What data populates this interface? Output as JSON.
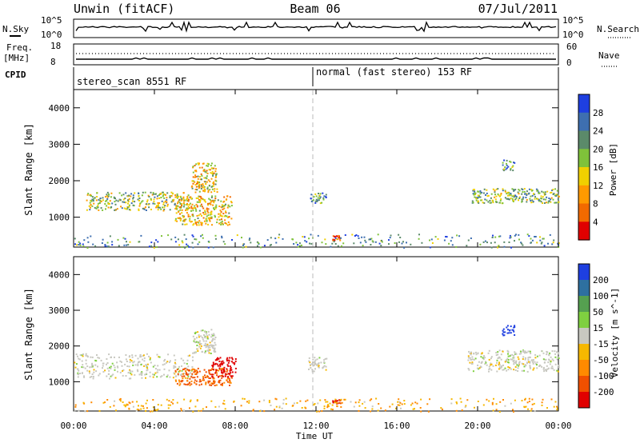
{
  "header": {
    "station": "Unwin (fitACF)",
    "beam": "Beam 06",
    "date": "07/Jul/2011"
  },
  "top_panels": {
    "nsky_label": "N.Sky",
    "nsearch_label": "N.Search",
    "nsky_ticks": [
      "10^5",
      "10^0"
    ],
    "nsearch_ticks": [
      "10^5",
      "10^0"
    ],
    "freq_label_1": "Freq.",
    "freq_label_2": "[MHz]",
    "freq_ticks": [
      "18",
      "8"
    ],
    "nave_label": "Nave",
    "nave_ticks": [
      "60",
      "0"
    ],
    "cpid_label": "CPID",
    "cpid_mode_1": "stereo_scan 8551 RF",
    "cpid_mode_2": "normal (fast stereo) 153 RF"
  },
  "chart_data": [
    {
      "type": "heatmap",
      "title": "",
      "xlabel": "",
      "ylabel": "Slant Range [km]",
      "x_range_hours": [
        0,
        24
      ],
      "ylim": [
        180,
        4500
      ],
      "y_ticks": [
        1000,
        2000,
        3000,
        4000
      ],
      "colorbar_label": "Power [dB]",
      "colorbar_ticks": [
        "4",
        "8",
        "12",
        "16",
        "20",
        "24",
        "28"
      ],
      "colorbar_colors": [
        "#1e3fe0",
        "#3e6fb0",
        "#5b8a6a",
        "#7fc23a",
        "#f0d000",
        "#ff9a00",
        "#f26a00",
        "#e00000"
      ],
      "echo_regions": [
        {
          "t": [
            0.6,
            5.8
          ],
          "r": [
            1200,
            1700
          ],
          "level": 0.45,
          "note": "main band"
        },
        {
          "t": [
            5.8,
            7.1
          ],
          "r": [
            1700,
            2500
          ],
          "level": 0.55,
          "note": "rising band"
        },
        {
          "t": [
            5.0,
            7.8
          ],
          "r": [
            800,
            1600
          ],
          "level": 0.6,
          "note": "lower patches"
        },
        {
          "t": [
            11.7,
            12.5
          ],
          "r": [
            1400,
            1700
          ],
          "level": 0.3
        },
        {
          "t": [
            12.8,
            13.2
          ],
          "r": [
            380,
            520
          ],
          "level": 0.95,
          "note": "strong spot"
        },
        {
          "t": [
            19.7,
            24.0
          ],
          "r": [
            1400,
            1800
          ],
          "level": 0.4
        },
        {
          "t": [
            21.2,
            21.8
          ],
          "r": [
            2300,
            2600
          ],
          "level": 0.3
        },
        {
          "t": [
            0.0,
            24.0
          ],
          "r": [
            180,
            550
          ],
          "level": 0.3,
          "note": "near-range clutter"
        }
      ]
    },
    {
      "type": "heatmap",
      "title": "",
      "xlabel": "Time UT",
      "ylabel": "Slant Range [km]",
      "x_range_hours": [
        0,
        24
      ],
      "x_ticks": [
        "00:00",
        "04:00",
        "08:00",
        "12:00",
        "16:00",
        "20:00",
        "00:00"
      ],
      "ylim": [
        180,
        4500
      ],
      "y_ticks": [
        1000,
        2000,
        3000,
        4000
      ],
      "colorbar_label": "Velocity [m s^-1]",
      "colorbar_ticks": [
        "200",
        "100",
        "50",
        "15",
        "-15",
        "-50",
        "-100",
        "-200"
      ],
      "colorbar_colors": [
        "#1e3fe0",
        "#2e70a0",
        "#55a050",
        "#7fd040",
        "#c8c8c0",
        "#f6b800",
        "#ff8a00",
        "#f05000",
        "#e00000"
      ],
      "echo_regions": [
        {
          "t": [
            0.0,
            5.9
          ],
          "r": [
            1100,
            1800
          ],
          "velocity": 0
        },
        {
          "t": [
            5.8,
            7.0
          ],
          "r": [
            1800,
            2500
          ],
          "velocity": 0
        },
        {
          "t": [
            5.0,
            7.8
          ],
          "r": [
            900,
            1400
          ],
          "velocity": -80
        },
        {
          "t": [
            6.8,
            8.0
          ],
          "r": [
            1150,
            1700
          ],
          "velocity": -190
        },
        {
          "t": [
            11.6,
            12.5
          ],
          "r": [
            1300,
            1700
          ],
          "velocity": 0
        },
        {
          "t": [
            12.8,
            13.2
          ],
          "r": [
            400,
            520
          ],
          "velocity": -150
        },
        {
          "t": [
            19.5,
            24.0
          ],
          "r": [
            1300,
            1900
          ],
          "velocity": 0
        },
        {
          "t": [
            21.2,
            21.8
          ],
          "r": [
            2300,
            2600
          ],
          "velocity": 180
        },
        {
          "t": [
            0.0,
            24.0
          ],
          "r": [
            180,
            550
          ],
          "velocity": -30
        }
      ]
    }
  ]
}
